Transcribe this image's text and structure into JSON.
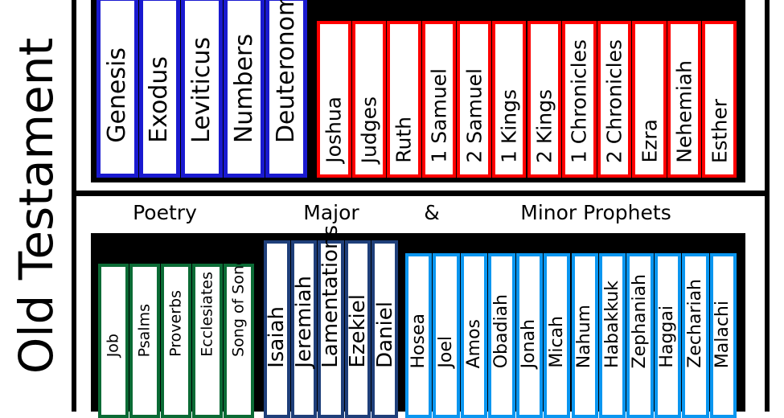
{
  "title": "Old Testament",
  "colors": {
    "law": "#1a1ad0",
    "history": "#ff0000",
    "poetry": "#0b6b35",
    "major_prophets": "#1f3f7a",
    "minor_prophets": "#0a96f0",
    "shelf": "#000000"
  },
  "labels": {
    "poetry": "Poetry",
    "major": "Major",
    "amp": "&",
    "minor": "Minor Prophets"
  },
  "law": [
    "Genesis",
    "Exodus",
    "Leviticus",
    "Numbers",
    "Deuteronomy"
  ],
  "history": [
    "Joshua",
    "Judges",
    "Ruth",
    "1 Samuel",
    "2 Samuel",
    "1 Kings",
    "2 Kings",
    "1 Chronicles",
    "2 Chronicles",
    "Ezra",
    "Nehemiah",
    "Esther"
  ],
  "poetry": [
    "Job",
    "Psalms",
    "Proverbs",
    "Ecclesiates",
    "Song of Songs"
  ],
  "major_prophets": [
    "Isaiah",
    "Jeremiah",
    "Lamentations",
    "Ezekiel",
    "Daniel"
  ],
  "minor_prophets": [
    "Hosea",
    "Joel",
    "Amos",
    "Obadiah",
    "Jonah",
    "Micah",
    "Nahum",
    "Habakkuk",
    "Zephaniah",
    "Haggai",
    "Zechariah",
    "Malachi"
  ]
}
